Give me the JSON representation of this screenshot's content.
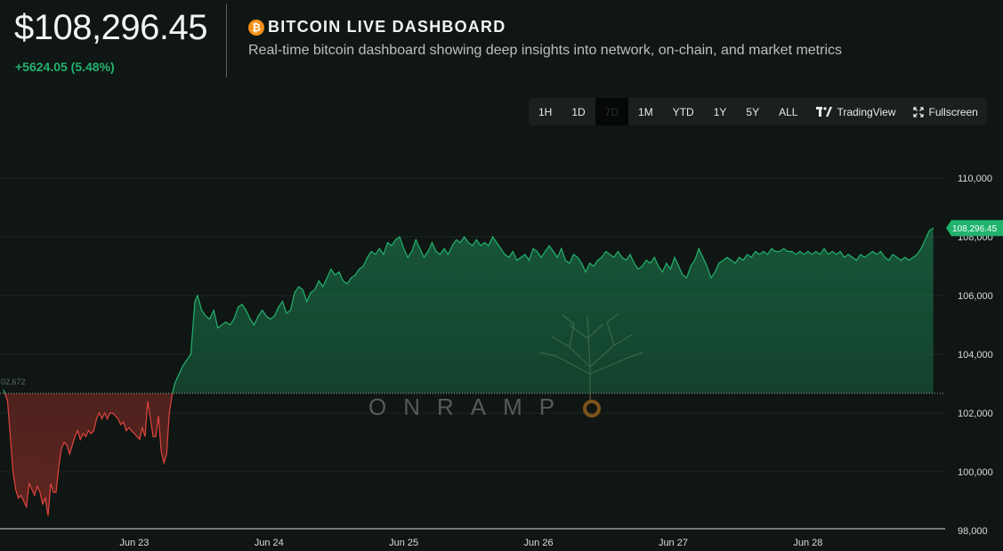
{
  "header": {
    "price": "$108,296.45",
    "change": "+5624.05 (5.48%)",
    "title": "BITCOIN LIVE DASHBOARD",
    "subtitle": "Real-time bitcoin dashboard showing deep insights into network, on-chain, and market metrics",
    "icon": "bitcoin-icon"
  },
  "toolbar": {
    "ranges": [
      "1H",
      "1D",
      "7D",
      "1M",
      "YTD",
      "1Y",
      "5Y",
      "ALL"
    ],
    "active_range": "7D",
    "tradingview_label": "TradingView",
    "fullscreen_label": "Fullscreen"
  },
  "watermark": {
    "text": "ONRAMP"
  },
  "colors": {
    "up": "#23b26d",
    "down": "#e0443f",
    "background": "#0f1613"
  },
  "chart_data": {
    "type": "area",
    "title": "",
    "xlabel": "",
    "ylabel": "",
    "baseline": 102672,
    "baseline_label": "02,672",
    "last_value_label": "108,296.45",
    "ylim": [
      98000,
      111500
    ],
    "yticks": [
      98000,
      100000,
      102000,
      104000,
      106000,
      108000,
      110000
    ],
    "ytick_labels": [
      "98,000",
      "100,000",
      "102,000",
      "104,000",
      "106,000",
      "108,000",
      "110,000"
    ],
    "xticks": [
      {
        "t": 0.97,
        "label": "Jun 23"
      },
      {
        "t": 1.97,
        "label": "Jun 24"
      },
      {
        "t": 2.97,
        "label": "Jun 25"
      },
      {
        "t": 3.97,
        "label": "Jun 26"
      },
      {
        "t": 4.97,
        "label": "Jun 27"
      },
      {
        "t": 5.97,
        "label": "Jun 28"
      }
    ],
    "x_unit": "days since Jun 22 00:00",
    "grid": true,
    "series": [
      {
        "points": [
          [
            0.0,
            102800
          ],
          [
            0.03,
            102400
          ],
          [
            0.05,
            101200
          ],
          [
            0.07,
            100000
          ],
          [
            0.09,
            99400
          ],
          [
            0.11,
            99100
          ],
          [
            0.13,
            99200
          ],
          [
            0.15,
            99000
          ],
          [
            0.17,
            98800
          ],
          [
            0.19,
            99600
          ],
          [
            0.21,
            99400
          ],
          [
            0.23,
            99200
          ],
          [
            0.25,
            99500
          ],
          [
            0.27,
            99300
          ],
          [
            0.29,
            98900
          ],
          [
            0.31,
            99100
          ],
          [
            0.33,
            98500
          ],
          [
            0.35,
            99600
          ],
          [
            0.37,
            99300
          ],
          [
            0.39,
            99300
          ],
          [
            0.41,
            100200
          ],
          [
            0.43,
            100800
          ],
          [
            0.45,
            101000
          ],
          [
            0.47,
            100900
          ],
          [
            0.49,
            100600
          ],
          [
            0.51,
            100900
          ],
          [
            0.53,
            101200
          ],
          [
            0.55,
            101400
          ],
          [
            0.57,
            101100
          ],
          [
            0.59,
            101300
          ],
          [
            0.61,
            101200
          ],
          [
            0.63,
            101400
          ],
          [
            0.65,
            101300
          ],
          [
            0.67,
            101400
          ],
          [
            0.69,
            101800
          ],
          [
            0.71,
            102000
          ],
          [
            0.73,
            101800
          ],
          [
            0.75,
            102000
          ],
          [
            0.77,
            101800
          ],
          [
            0.79,
            102000
          ],
          [
            0.81,
            102000
          ],
          [
            0.83,
            101900
          ],
          [
            0.85,
            101800
          ],
          [
            0.87,
            101600
          ],
          [
            0.89,
            101700
          ],
          [
            0.91,
            101400
          ],
          [
            0.93,
            101500
          ],
          [
            0.95,
            101400
          ],
          [
            0.97,
            101300
          ],
          [
            0.99,
            101200
          ],
          [
            1.01,
            101100
          ],
          [
            1.03,
            101500
          ],
          [
            1.05,
            101200
          ],
          [
            1.07,
            102400
          ],
          [
            1.09,
            101800
          ],
          [
            1.11,
            101200
          ],
          [
            1.13,
            101200
          ],
          [
            1.15,
            101900
          ],
          [
            1.17,
            100700
          ],
          [
            1.19,
            100300
          ],
          [
            1.21,
            100600
          ],
          [
            1.23,
            102000
          ],
          [
            1.25,
            102600
          ],
          [
            1.27,
            103000
          ],
          [
            1.3,
            103300
          ],
          [
            1.33,
            103600
          ],
          [
            1.36,
            103800
          ],
          [
            1.39,
            104000
          ],
          [
            1.42,
            105800
          ],
          [
            1.44,
            106000
          ],
          [
            1.47,
            105500
          ],
          [
            1.5,
            105300
          ],
          [
            1.53,
            105200
          ],
          [
            1.56,
            105500
          ],
          [
            1.59,
            104900
          ],
          [
            1.62,
            105000
          ],
          [
            1.65,
            105100
          ],
          [
            1.68,
            105000
          ],
          [
            1.71,
            105200
          ],
          [
            1.74,
            105600
          ],
          [
            1.77,
            105700
          ],
          [
            1.8,
            105500
          ],
          [
            1.83,
            105200
          ],
          [
            1.86,
            105000
          ],
          [
            1.89,
            105300
          ],
          [
            1.92,
            105500
          ],
          [
            1.95,
            105300
          ],
          [
            1.98,
            105200
          ],
          [
            2.01,
            105300
          ],
          [
            2.04,
            105600
          ],
          [
            2.07,
            105800
          ],
          [
            2.1,
            105400
          ],
          [
            2.13,
            105500
          ],
          [
            2.16,
            106100
          ],
          [
            2.19,
            106300
          ],
          [
            2.22,
            106200
          ],
          [
            2.25,
            105800
          ],
          [
            2.28,
            106100
          ],
          [
            2.31,
            106200
          ],
          [
            2.34,
            106500
          ],
          [
            2.37,
            106300
          ],
          [
            2.4,
            106600
          ],
          [
            2.43,
            106900
          ],
          [
            2.46,
            106700
          ],
          [
            2.49,
            106800
          ],
          [
            2.52,
            106500
          ],
          [
            2.55,
            106400
          ],
          [
            2.58,
            106600
          ],
          [
            2.61,
            106700
          ],
          [
            2.64,
            106900
          ],
          [
            2.67,
            107000
          ],
          [
            2.7,
            107300
          ],
          [
            2.73,
            107500
          ],
          [
            2.76,
            107400
          ],
          [
            2.79,
            107600
          ],
          [
            2.82,
            107400
          ],
          [
            2.85,
            107800
          ],
          [
            2.88,
            107700
          ],
          [
            2.91,
            107900
          ],
          [
            2.94,
            108000
          ],
          [
            2.97,
            107600
          ],
          [
            3.0,
            107300
          ],
          [
            3.03,
            107500
          ],
          [
            3.06,
            107900
          ],
          [
            3.09,
            107600
          ],
          [
            3.12,
            107300
          ],
          [
            3.15,
            107500
          ],
          [
            3.18,
            107800
          ],
          [
            3.21,
            107500
          ],
          [
            3.24,
            107400
          ],
          [
            3.27,
            107600
          ],
          [
            3.3,
            107400
          ],
          [
            3.33,
            107700
          ],
          [
            3.36,
            107900
          ],
          [
            3.39,
            107800
          ],
          [
            3.42,
            108000
          ],
          [
            3.45,
            107800
          ],
          [
            3.48,
            107700
          ],
          [
            3.51,
            107900
          ],
          [
            3.54,
            107700
          ],
          [
            3.57,
            107800
          ],
          [
            3.6,
            107700
          ],
          [
            3.63,
            108000
          ],
          [
            3.66,
            107800
          ],
          [
            3.69,
            107600
          ],
          [
            3.72,
            107400
          ],
          [
            3.75,
            107300
          ],
          [
            3.78,
            107500
          ],
          [
            3.81,
            107200
          ],
          [
            3.84,
            107300
          ],
          [
            3.87,
            107400
          ],
          [
            3.9,
            107200
          ],
          [
            3.93,
            107600
          ],
          [
            3.96,
            107500
          ],
          [
            3.99,
            107300
          ],
          [
            4.02,
            107500
          ],
          [
            4.05,
            107700
          ],
          [
            4.08,
            107500
          ],
          [
            4.11,
            107300
          ],
          [
            4.14,
            107600
          ],
          [
            4.17,
            107200
          ],
          [
            4.2,
            107100
          ],
          [
            4.23,
            107400
          ],
          [
            4.26,
            107300
          ],
          [
            4.29,
            107100
          ],
          [
            4.32,
            106800
          ],
          [
            4.35,
            107100
          ],
          [
            4.38,
            107000
          ],
          [
            4.41,
            107200
          ],
          [
            4.44,
            107300
          ],
          [
            4.47,
            107500
          ],
          [
            4.5,
            107400
          ],
          [
            4.53,
            107300
          ],
          [
            4.56,
            107500
          ],
          [
            4.59,
            107300
          ],
          [
            4.62,
            107200
          ],
          [
            4.65,
            107400
          ],
          [
            4.68,
            107100
          ],
          [
            4.71,
            106900
          ],
          [
            4.74,
            107000
          ],
          [
            4.77,
            107200
          ],
          [
            4.8,
            107100
          ],
          [
            4.83,
            107300
          ],
          [
            4.86,
            107000
          ],
          [
            4.89,
            106800
          ],
          [
            4.92,
            107100
          ],
          [
            4.95,
            106900
          ],
          [
            4.98,
            107300
          ],
          [
            5.01,
            107000
          ],
          [
            5.04,
            106700
          ],
          [
            5.07,
            106600
          ],
          [
            5.1,
            107000
          ],
          [
            5.13,
            107200
          ],
          [
            5.16,
            107600
          ],
          [
            5.19,
            107300
          ],
          [
            5.22,
            107000
          ],
          [
            5.25,
            106600
          ],
          [
            5.28,
            106800
          ],
          [
            5.31,
            107100
          ],
          [
            5.34,
            107200
          ],
          [
            5.37,
            107300
          ],
          [
            5.4,
            107200
          ],
          [
            5.43,
            107100
          ],
          [
            5.46,
            107300
          ],
          [
            5.49,
            107200
          ],
          [
            5.52,
            107400
          ],
          [
            5.55,
            107300
          ],
          [
            5.58,
            107500
          ],
          [
            5.61,
            107400
          ],
          [
            5.64,
            107500
          ],
          [
            5.67,
            107400
          ],
          [
            5.7,
            107600
          ],
          [
            5.73,
            107500
          ],
          [
            5.76,
            107500
          ],
          [
            5.79,
            107600
          ],
          [
            5.82,
            107500
          ],
          [
            5.85,
            107500
          ],
          [
            5.88,
            107400
          ],
          [
            5.91,
            107500
          ],
          [
            5.94,
            107400
          ],
          [
            5.97,
            107500
          ],
          [
            6.0,
            107400
          ],
          [
            6.03,
            107500
          ],
          [
            6.06,
            107400
          ],
          [
            6.09,
            107600
          ],
          [
            6.12,
            107400
          ],
          [
            6.15,
            107500
          ],
          [
            6.18,
            107400
          ],
          [
            6.21,
            107500
          ],
          [
            6.24,
            107300
          ],
          [
            6.27,
            107400
          ],
          [
            6.3,
            107300
          ],
          [
            6.33,
            107200
          ],
          [
            6.36,
            107400
          ],
          [
            6.39,
            107300
          ],
          [
            6.42,
            107400
          ],
          [
            6.45,
            107500
          ],
          [
            6.48,
            107400
          ],
          [
            6.51,
            107500
          ],
          [
            6.54,
            107300
          ],
          [
            6.57,
            107200
          ],
          [
            6.6,
            107400
          ],
          [
            6.63,
            107300
          ],
          [
            6.66,
            107200
          ],
          [
            6.69,
            107300
          ],
          [
            6.72,
            107200
          ],
          [
            6.75,
            107300
          ],
          [
            6.78,
            107400
          ],
          [
            6.81,
            107600
          ],
          [
            6.84,
            107900
          ],
          [
            6.87,
            108200
          ],
          [
            6.9,
            108296.45
          ]
        ]
      }
    ]
  }
}
